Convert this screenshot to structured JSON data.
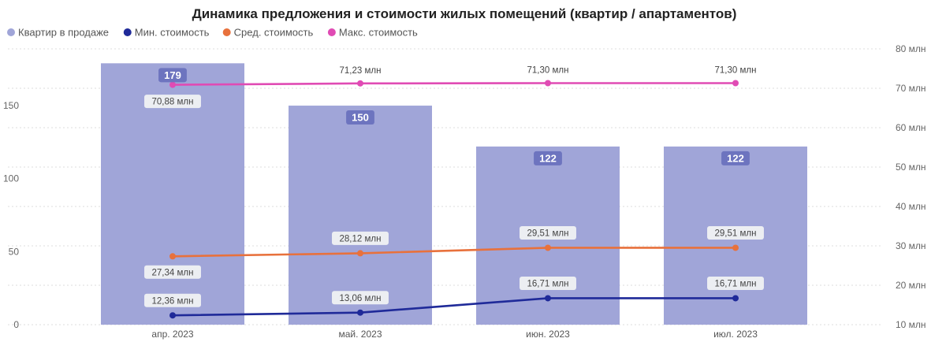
{
  "chart_data": {
    "type": "bar+line",
    "title": "Динамика предложения и стоимости жилых помещений (квартир / апартаментов)",
    "categories": [
      "апр. 2023",
      "май. 2023",
      "июн. 2023",
      "июл. 2023"
    ],
    "legend_position": "top-left",
    "series": [
      {
        "name": "Квартир в продаже",
        "type": "bar",
        "axis": "left",
        "color": "#a0a5d8",
        "values": [
          179,
          150,
          122,
          122
        ],
        "labels": [
          "179",
          "150",
          "122",
          "122"
        ]
      },
      {
        "name": "Мин. стоимость",
        "type": "line",
        "axis": "right",
        "color": "#1f2a99",
        "values": [
          12.36,
          13.06,
          16.71,
          16.71
        ],
        "labels": [
          "12,36 млн",
          "13,06 млн",
          "16,71 млн",
          "16,71 млн"
        ]
      },
      {
        "name": "Сред. стоимость",
        "type": "line",
        "axis": "right",
        "color": "#e8713c",
        "values": [
          27.34,
          28.12,
          29.51,
          29.51
        ],
        "labels": [
          "27,34 млн",
          "28,12 млн",
          "29,51 млн",
          "29,51 млн"
        ]
      },
      {
        "name": "Макс. стоимость",
        "type": "line",
        "axis": "right",
        "color": "#e04bb4",
        "values": [
          70.88,
          71.23,
          71.3,
          71.3
        ],
        "labels": [
          "70,88 млн",
          "71,23 млн",
          "71,30 млн",
          "71,30 млн"
        ]
      }
    ],
    "y_left": {
      "ticks": [
        0,
        50,
        100,
        150
      ],
      "ylim": [
        0,
        185
      ]
    },
    "y_right": {
      "ticks": [
        10,
        20,
        30,
        40,
        50,
        60,
        70,
        80
      ],
      "tick_labels": [
        "10 млн",
        "20 млн",
        "30 млн",
        "40 млн",
        "50 млн",
        "60 млн",
        "70 млн",
        "80 млн"
      ],
      "ylim": [
        10,
        80
      ]
    },
    "grid": true,
    "bar_label_bg": "#6d74bf",
    "line_label_bg": "#eceef2"
  }
}
